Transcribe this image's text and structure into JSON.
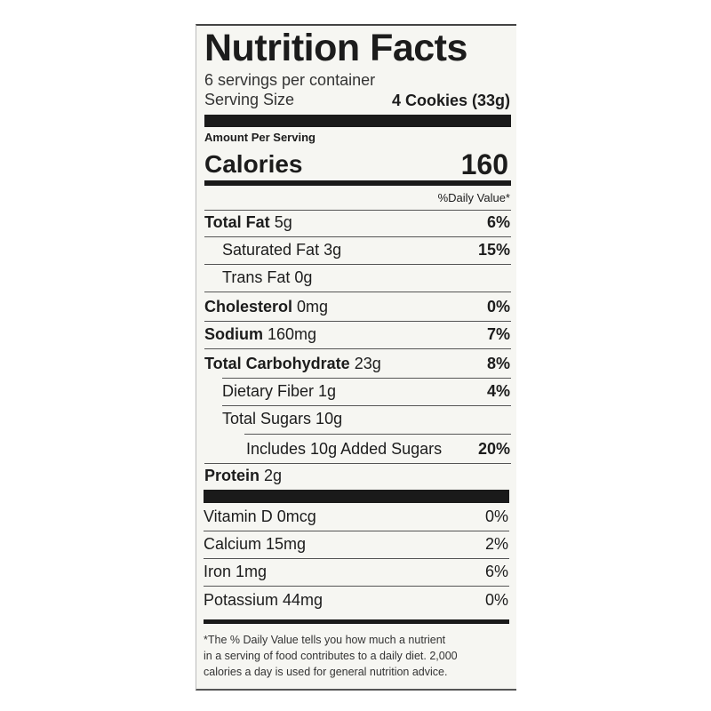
{
  "title": "Nutrition Facts",
  "servings": "6 servings per container",
  "serving_size_label": "Serving Size",
  "serving_size_value": "4 Cookies (33g)",
  "amount_per_serving": "Amount Per Serving",
  "calories_label": "Calories",
  "calories_value": "160",
  "daily_value_header": "%Daily Value*",
  "nutrients": [
    {
      "name": "Total Fat",
      "amount": "5g",
      "dv": "6%"
    },
    {
      "name": "Saturated Fat 3g",
      "dv": "15%"
    },
    {
      "name": "Trans Fat 0g",
      "dv": ""
    },
    {
      "name": "Cholesterol",
      "amount": "0mg",
      "dv": "0%"
    },
    {
      "name": "Sodium",
      "amount": "160mg",
      "dv": "7%"
    },
    {
      "name": "Total Carbohydrate",
      "amount": "23g",
      "dv": "8%"
    },
    {
      "name": "Dietary Fiber 1g",
      "dv": "4%"
    },
    {
      "name": "Total Sugars 10g",
      "dv": ""
    },
    {
      "name": "Includes 10g Added Sugars",
      "dv": "20%"
    },
    {
      "name": "Protein",
      "amount": "2g",
      "dv": ""
    }
  ],
  "vitamins": [
    {
      "name": "Vitamin D 0mcg",
      "dv": "0%"
    },
    {
      "name": "Calcium 15mg",
      "dv": "2%"
    },
    {
      "name": "Iron 1mg",
      "dv": "6%"
    },
    {
      "name": "Potassium 44mg",
      "dv": "0%"
    }
  ],
  "footnote": [
    "*The % Daily Value tells you how much a nutrient",
    "in a serving of food contributes to a daily diet. 2,000",
    "calories a day is used for general nutrition advice."
  ]
}
